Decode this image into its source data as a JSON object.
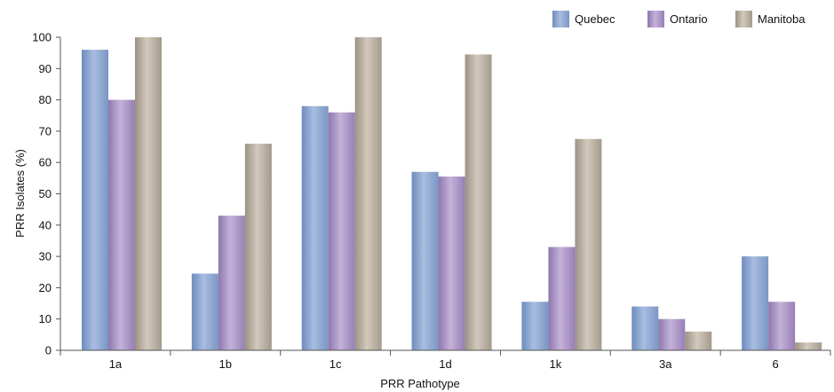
{
  "chart_data": {
    "type": "bar",
    "xlabel": "PRR Pathotype",
    "ylabel": "PRR Isolates (%)",
    "ylim": [
      0,
      100
    ],
    "yticks": [
      0,
      10,
      20,
      30,
      40,
      50,
      60,
      70,
      80,
      90,
      100
    ],
    "categories": [
      "1a",
      "1b",
      "1c",
      "1d",
      "1k",
      "3a",
      "6"
    ],
    "series": [
      {
        "name": "Quebec",
        "color": "#8fa9d0",
        "values": [
          96,
          24.5,
          78,
          57,
          15.5,
          14,
          30
        ]
      },
      {
        "name": "Ontario",
        "color": "#ab99c5",
        "values": [
          80,
          43,
          76,
          55.5,
          33,
          10,
          15.5
        ]
      },
      {
        "name": "Manitoba",
        "color": "#bab1a3",
        "values": [
          100,
          66,
          100,
          94.5,
          67.5,
          6,
          2.5
        ]
      }
    ],
    "grid": false,
    "legend_position": "top-right"
  }
}
